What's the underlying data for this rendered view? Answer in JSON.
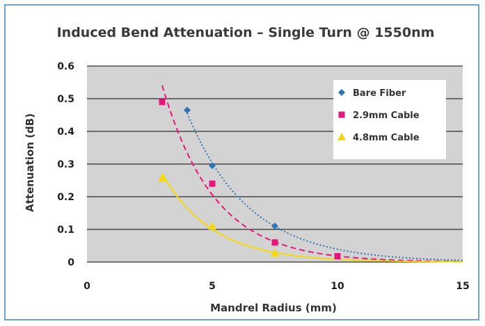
{
  "chart_data": {
    "type": "scatter",
    "title": "Induced Bend Attenuation – Single Turn @ 1550nm",
    "xlabel": "Mandrel Radius (mm)",
    "ylabel": "Attenuation (dB)",
    "xlim": [
      0,
      15
    ],
    "ylim": [
      0,
      0.6
    ],
    "xticks": [
      "0",
      "5",
      "10",
      "15"
    ],
    "yticks": [
      "0",
      "0.1",
      "0.2",
      "0.3",
      "0.4",
      "0.5",
      "0.6"
    ],
    "grid": "horizontal",
    "plot_background": "#d3d3d3",
    "legend_position": "top-right",
    "series": [
      {
        "name": "Bare Fiber",
        "marker": "diamond",
        "color": "#2e75b6",
        "line": "dotted",
        "x": [
          4,
          5,
          7.5
        ],
        "y": [
          0.465,
          0.295,
          0.11
        ]
      },
      {
        "name": "2.9mm Cable",
        "marker": "square",
        "color": "#e6177a",
        "line": "dashed",
        "x": [
          3,
          5,
          7.5,
          10
        ],
        "y": [
          0.49,
          0.24,
          0.06,
          0.018
        ]
      },
      {
        "name": "4.8mm Cable",
        "marker": "triangle",
        "color": "#f5d90a",
        "line": "solid",
        "x": [
          3,
          5,
          7.5
        ],
        "y": [
          0.258,
          0.11,
          0.028
        ]
      }
    ]
  }
}
